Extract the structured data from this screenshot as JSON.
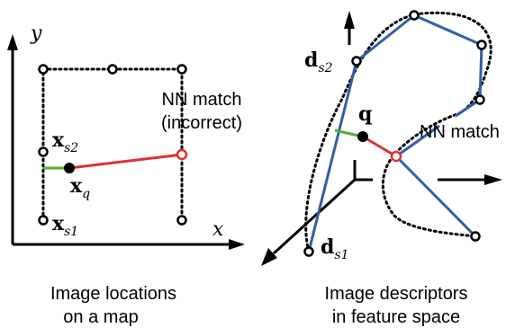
{
  "left_panel": {
    "axis_x_label": "x",
    "axis_y_label": "y",
    "xs2_base": "x",
    "xs2_sub": "s2",
    "xs1_base": "x",
    "xs1_sub": "s1",
    "xq_base": "x",
    "xq_sub": "q",
    "nn_match_line1": "NN match",
    "nn_match_line2": "(incorrect)",
    "caption_line1": "Image locations",
    "caption_line2": "on a map"
  },
  "right_panel": {
    "ds2_base": "d",
    "ds2_sub": "s2",
    "ds1_base": "d",
    "ds1_sub": "s1",
    "q_label": "q",
    "nn_match_label": "NN match",
    "caption_line1": "Image descriptors",
    "caption_line2": "in feature space"
  },
  "colors": {
    "trajectory_blue": "#2f5fa8",
    "query_link_red": "#e03030",
    "correct_link_green": "#5aaa3a"
  }
}
